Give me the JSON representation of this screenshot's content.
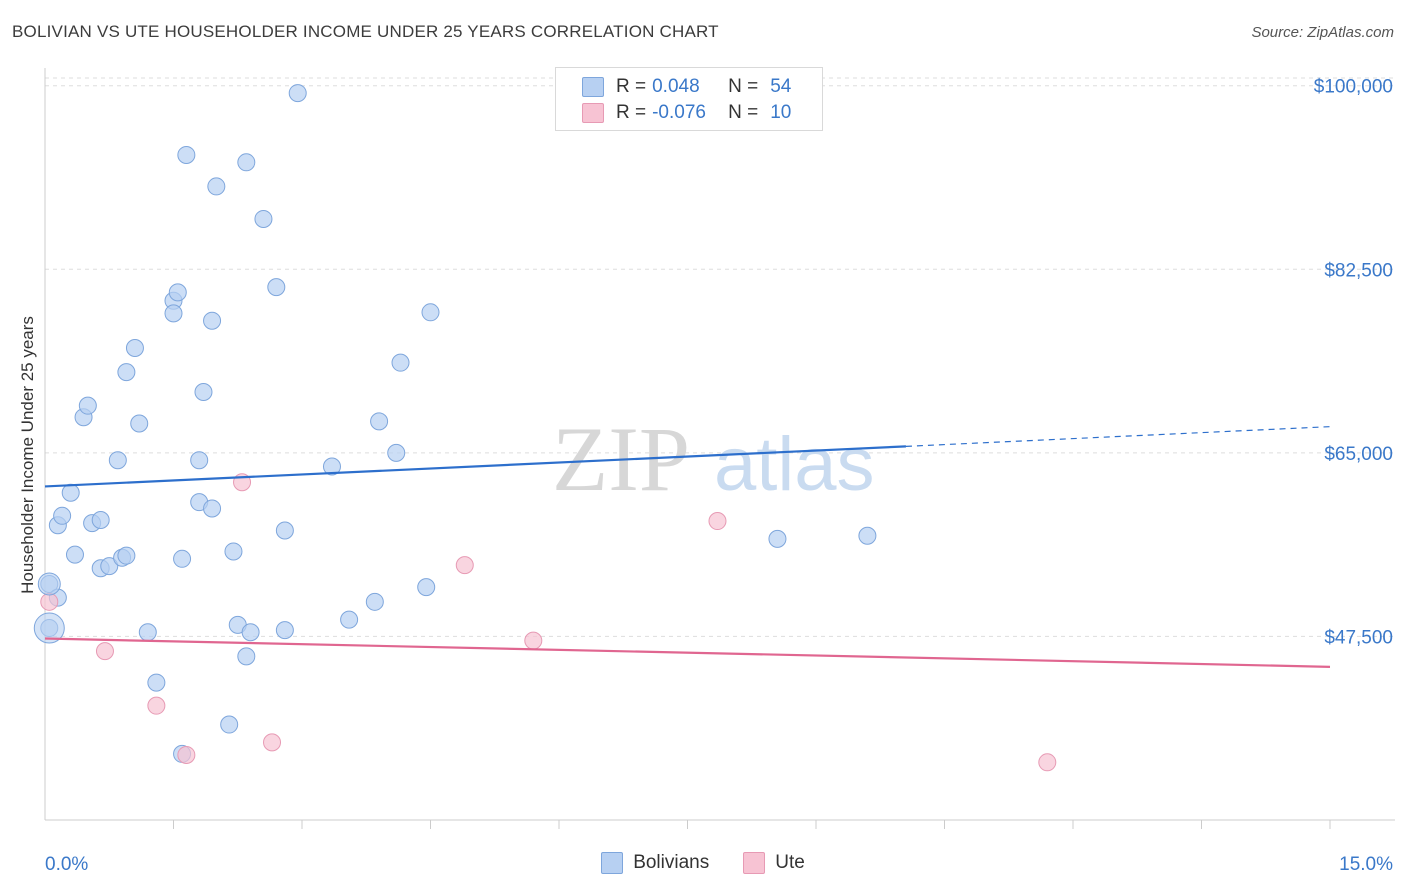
{
  "header": {
    "title": "BOLIVIAN VS UTE HOUSEHOLDER INCOME UNDER 25 YEARS CORRELATION CHART",
    "source": "Source: ZipAtlas.com"
  },
  "legend_top": {
    "rows": [
      {
        "r_label": "R =",
        "r_value": "0.048",
        "n_label": "N =",
        "n_value": "54",
        "color": "#b7d0f2"
      },
      {
        "r_label": "R =",
        "r_value": "-0.076",
        "n_label": "N =",
        "n_value": "10",
        "color": "#f7c3d3"
      }
    ]
  },
  "legend_bottom": {
    "items": [
      {
        "label": "Bolivians",
        "color": "#b7d0f2"
      },
      {
        "label": "Ute",
        "color": "#f7c3d3"
      }
    ]
  },
  "watermark": {
    "part1": "ZIP",
    "part2": "atlas"
  },
  "colors": {
    "blue_fill": "#b7d0f2",
    "blue_stroke": "#7ea6dc",
    "blue_line": "#2d6fcc",
    "pink_fill": "#f7c3d3",
    "pink_stroke": "#e79ab4",
    "pink_line": "#e06690",
    "tick_text": "#3a78c9",
    "grid": "#dddddd"
  },
  "chart_data": {
    "type": "scatter",
    "title": "BOLIVIAN VS UTE HOUSEHOLDER INCOME UNDER 25 YEARS CORRELATION CHART",
    "xlabel": "",
    "ylabel": "Householder Income Under 25 years",
    "xlim": [
      0,
      15
    ],
    "ylim": [
      30000,
      101500
    ],
    "x_tick_labels": [
      "0.0%",
      "15.0%"
    ],
    "y_ticks": [
      47500,
      65000,
      82500,
      100000
    ],
    "y_tick_labels": [
      "$47,500",
      "$65,000",
      "$82,500",
      "$100,000"
    ],
    "grid": "horizontal dashed",
    "legend_position": "top-center",
    "series": [
      {
        "name": "Bolivians",
        "r": 0.048,
        "n": 54,
        "points": [
          [
            0.05,
            52500
          ],
          [
            0.05,
            48300
          ],
          [
            0.15,
            51200
          ],
          [
            0.15,
            58100
          ],
          [
            0.2,
            59000
          ],
          [
            0.3,
            61200
          ],
          [
            0.35,
            55300
          ],
          [
            0.45,
            68400
          ],
          [
            0.5,
            69500
          ],
          [
            0.55,
            58300
          ],
          [
            0.65,
            54000
          ],
          [
            0.65,
            58600
          ],
          [
            0.75,
            54200
          ],
          [
            0.85,
            64300
          ],
          [
            0.9,
            55000
          ],
          [
            0.95,
            55200
          ],
          [
            0.95,
            72700
          ],
          [
            1.05,
            75000
          ],
          [
            1.1,
            67800
          ],
          [
            1.2,
            47900
          ],
          [
            1.3,
            43100
          ],
          [
            1.5,
            79500
          ],
          [
            1.5,
            78300
          ],
          [
            1.55,
            80300
          ],
          [
            1.6,
            54900
          ],
          [
            1.6,
            36300
          ],
          [
            1.65,
            93400
          ],
          [
            1.8,
            60300
          ],
          [
            1.8,
            64300
          ],
          [
            1.85,
            70800
          ],
          [
            1.95,
            59700
          ],
          [
            1.95,
            77600
          ],
          [
            2.0,
            90400
          ],
          [
            2.15,
            39100
          ],
          [
            2.2,
            55600
          ],
          [
            2.25,
            48600
          ],
          [
            2.35,
            92700
          ],
          [
            2.35,
            45600
          ],
          [
            2.4,
            47900
          ],
          [
            2.55,
            87300
          ],
          [
            2.7,
            80800
          ],
          [
            2.8,
            57600
          ],
          [
            2.8,
            48100
          ],
          [
            2.95,
            99300
          ],
          [
            3.35,
            63700
          ],
          [
            3.55,
            49100
          ],
          [
            3.85,
            50800
          ],
          [
            3.9,
            68000
          ],
          [
            4.1,
            65000
          ],
          [
            4.15,
            73600
          ],
          [
            4.45,
            52200
          ],
          [
            4.5,
            78400
          ],
          [
            8.55,
            56800
          ],
          [
            9.6,
            57100
          ]
        ]
      },
      {
        "name": "Ute",
        "r": -0.076,
        "n": 10,
        "points": [
          [
            0.05,
            50800
          ],
          [
            0.7,
            46100
          ],
          [
            1.3,
            40900
          ],
          [
            1.65,
            36200
          ],
          [
            2.3,
            62200
          ],
          [
            2.65,
            37400
          ],
          [
            4.9,
            54300
          ],
          [
            5.7,
            47100
          ],
          [
            7.85,
            58500
          ],
          [
            11.7,
            35500
          ]
        ]
      }
    ],
    "trendlines": [
      {
        "series": "Bolivians",
        "x_range": [
          0,
          15
        ],
        "y_start": 61800,
        "y_end": 67500,
        "solid_until_x": 10.05
      },
      {
        "series": "Ute",
        "x_range": [
          0,
          15
        ],
        "y_start": 47300,
        "y_end": 44600,
        "solid_until_x": 15
      }
    ]
  }
}
